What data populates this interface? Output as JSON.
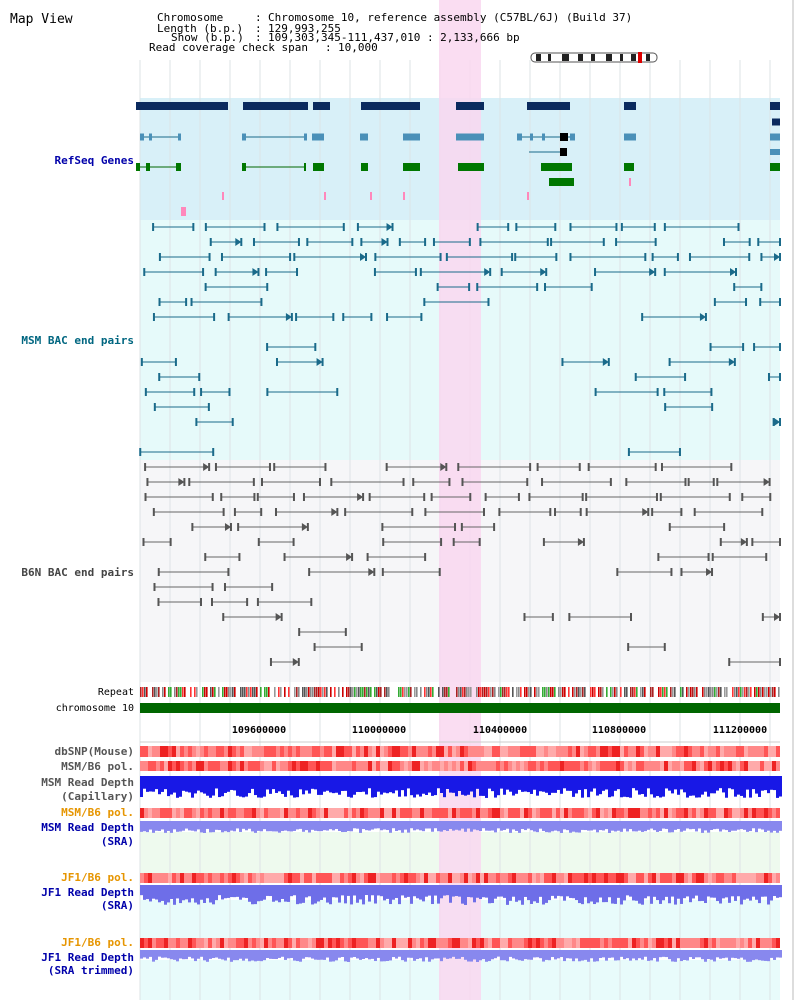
{
  "app": {
    "title": "Map View"
  },
  "header": {
    "chromosome_label": "Chromosome",
    "chromosome_value": "Chromosome 10, reference assembly (C57BL/6J) (Build 37)",
    "length_label": "Length (b.p.)",
    "length_value": "129,993,255",
    "show_label": "Show (b.p.)",
    "show_value": "109,303,345-111,437,010 : 2,133,666 bp",
    "coverage_label": "Read coverage check span",
    "coverage_value": "10,000"
  },
  "tracks": {
    "refseq": "RefSeq Genes",
    "msm_bac": "MSM BAC end pairs",
    "b6n_bac": "B6N BAC end pairs",
    "repeat": "Repeat",
    "chromosome": "chromosome 10",
    "dbsnp": "dbSNP(Mouse)",
    "msm_b6_pol_1": "MSM/B6 pol.",
    "msm_depth_cap_1": "MSM Read Depth",
    "msm_depth_cap_2": "(Capillary)",
    "msm_b6_pol_2": "MSM/B6 pol.",
    "msm_depth_sra_1": "MSM Read Depth",
    "msm_depth_sra_2": "(SRA)",
    "jf1_b6_pol_1": "JF1/B6 pol.",
    "jf1_depth_sra_1": "JF1 Read Depth",
    "jf1_depth_sra_2": "(SRA)",
    "jf1_b6_pol_2": "JF1/B6 pol.",
    "jf1_depth_trim_1": "JF1 Read Depth",
    "jf1_depth_trim_2": "(SRA trimmed)"
  },
  "axis": {
    "ticks": [
      "109600000",
      "110000000",
      "110400000",
      "110800000",
      "111200000"
    ]
  },
  "colors": {
    "label_navy": "#0000aa",
    "label_teal": "#006680",
    "label_gray": "#444444",
    "label_orange": "#e69500",
    "highlight": "#f9d7f0",
    "refseq_bg": "#d8f0f8",
    "msm_bg": "#e6fafa",
    "b6n_bg": "#f7f7f9",
    "chrom_green": "#006600"
  }
}
